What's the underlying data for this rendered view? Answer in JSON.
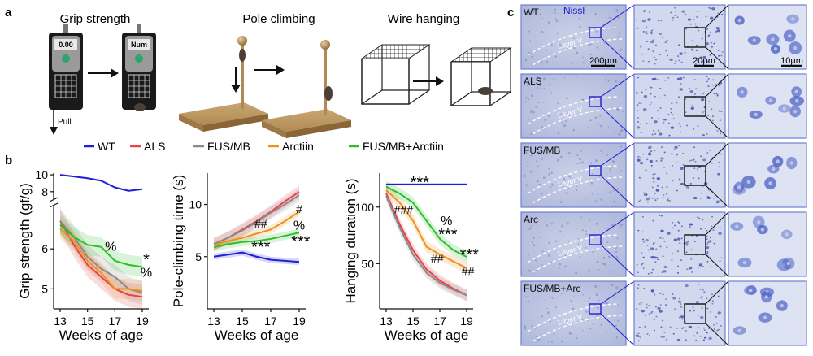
{
  "panel_labels": {
    "a": "a",
    "b": "b",
    "c": "c"
  },
  "tests": {
    "grip": {
      "title": "Grip strength",
      "display_before": "0.00",
      "display_after": "Num",
      "pull_label": "Pull"
    },
    "pole": {
      "title": "Pole climbing"
    },
    "wire": {
      "title": "Wire hanging"
    }
  },
  "legend": [
    {
      "name": "WT",
      "color": "#1f1fd6"
    },
    {
      "name": "ALS",
      "color": "#e8434b"
    },
    {
      "name": "FUS/MB",
      "color": "#8a8a8a"
    },
    {
      "name": "Arctiin",
      "color": "#f0901e"
    },
    {
      "name": "FUS/MB+Arctiin",
      "color": "#2bbf2b"
    }
  ],
  "chart_data": [
    {
      "id": "grip",
      "type": "line",
      "xlabel": "Weeks of age",
      "ylabel": "Grip strength (gf/g)",
      "x": [
        13,
        14,
        15,
        16,
        17,
        18,
        19
      ],
      "xticks": [
        13,
        15,
        17,
        19
      ],
      "ylim_lower": [
        4.5,
        7.0
      ],
      "ylim_upper": [
        7.5,
        10.2
      ],
      "yticks_lower": [
        5,
        6
      ],
      "yticks_upper": [
        8,
        10
      ],
      "axis_break": true,
      "series": [
        {
          "name": "WT",
          "values": [
            10.0,
            9.8,
            9.6,
            9.3,
            8.5,
            8.1,
            8.3
          ],
          "band": 0.1
        },
        {
          "name": "ALS",
          "values": [
            6.7,
            6.1,
            5.6,
            5.3,
            5.0,
            4.85,
            4.8
          ],
          "band": 0.3
        },
        {
          "name": "FUS/MB",
          "values": [
            6.7,
            6.3,
            5.8,
            5.5,
            5.3,
            5.0,
            4.9
          ],
          "band": 0.3
        },
        {
          "name": "Arctiin",
          "values": [
            6.5,
            6.2,
            5.7,
            5.4,
            5.0,
            5.0,
            4.95
          ],
          "band": 0.25
        },
        {
          "name": "FUS/MB+Arctiin",
          "values": [
            6.6,
            6.3,
            6.1,
            6.05,
            5.7,
            5.6,
            5.55
          ],
          "band": 0.25
        }
      ],
      "annotations": [
        {
          "text": "%",
          "x": 16.7,
          "y": 5.95,
          "size": 16
        },
        {
          "text": "*",
          "x": 19.3,
          "y": 5.6,
          "size": 20
        },
        {
          "text": "%",
          "x": 19.3,
          "y": 5.3,
          "size": 16
        }
      ]
    },
    {
      "id": "pole",
      "type": "line",
      "xlabel": "Weeks of age",
      "ylabel": "Pole-climbing time (s)",
      "x": [
        13,
        14,
        15,
        16,
        17,
        18,
        19
      ],
      "xticks": [
        13,
        15,
        17,
        19
      ],
      "ylim": [
        0,
        13
      ],
      "yticks": [
        5,
        10
      ],
      "series": [
        {
          "name": "WT",
          "values": [
            5.0,
            5.2,
            5.4,
            5.0,
            4.7,
            4.6,
            4.5
          ],
          "band": 0.3
        },
        {
          "name": "ALS",
          "values": [
            6.2,
            6.8,
            7.6,
            8.4,
            9.3,
            10.3,
            11.2
          ],
          "band": 0.6
        },
        {
          "name": "FUS/MB",
          "values": [
            6.2,
            6.8,
            7.5,
            8.3,
            9.2,
            10.0,
            10.9
          ],
          "band": 0.6
        },
        {
          "name": "Arctiin",
          "values": [
            6.1,
            6.5,
            6.8,
            7.2,
            7.6,
            8.4,
            9.3
          ],
          "band": 0.4
        },
        {
          "name": "FUS/MB+Arctiin",
          "values": [
            5.9,
            6.2,
            6.4,
            6.5,
            6.7,
            7.0,
            7.3
          ],
          "band": 0.4
        }
      ],
      "annotations": [
        {
          "text": "##",
          "x": 16.3,
          "y": 7.8,
          "size": 14
        },
        {
          "text": "***",
          "x": 16.3,
          "y": 5.4,
          "size": 20
        },
        {
          "text": "#",
          "x": 19.0,
          "y": 9.2,
          "size": 14
        },
        {
          "text": "%",
          "x": 19.0,
          "y": 7.6,
          "size": 16
        },
        {
          "text": "***",
          "x": 19.1,
          "y": 5.9,
          "size": 20
        }
      ]
    },
    {
      "id": "hang",
      "type": "line",
      "xlabel": "Weeks of age",
      "ylabel": "Hanging duration (s)",
      "x": [
        13,
        14,
        15,
        16,
        17,
        18,
        19
      ],
      "xticks": [
        13,
        15,
        17,
        19
      ],
      "ylim": [
        10,
        130
      ],
      "yticks": [
        50,
        100
      ],
      "series": [
        {
          "name": "WT",
          "values": [
            120,
            120,
            120,
            120,
            120,
            120,
            120
          ],
          "band": 1
        },
        {
          "name": "ALS",
          "values": [
            112,
            85,
            62,
            45,
            35,
            28,
            22
          ],
          "band": 5
        },
        {
          "name": "FUS/MB",
          "values": [
            110,
            82,
            58,
            42,
            33,
            27,
            22
          ],
          "band": 5
        },
        {
          "name": "Arctiin",
          "values": [
            115,
            104,
            88,
            65,
            58,
            52,
            46
          ],
          "band": 5
        },
        {
          "name": "FUS/MB+Arctiin",
          "values": [
            118,
            112,
            104,
            88,
            72,
            62,
            56
          ],
          "band": 5
        }
      ],
      "annotations": [
        {
          "text": "***",
          "x": 15.5,
          "y": 117,
          "size": 20
        },
        {
          "text": "###",
          "x": 14.3,
          "y": 94,
          "size": 14
        },
        {
          "text": "%",
          "x": 17.5,
          "y": 84,
          "size": 16
        },
        {
          "text": "***",
          "x": 17.6,
          "y": 71,
          "size": 20
        },
        {
          "text": "##",
          "x": 16.8,
          "y": 51,
          "size": 14
        },
        {
          "text": "***",
          "x": 19.2,
          "y": 53,
          "size": 20
        },
        {
          "text": "##",
          "x": 19.1,
          "y": 40,
          "size": 14
        }
      ]
    }
  ],
  "histology": {
    "stain_label": "Nissl",
    "layer_label": "Layer V",
    "scale_bars": [
      "200μm",
      "20μm",
      "10μm"
    ],
    "rows": [
      {
        "label": "WT"
      },
      {
        "label": "ALS"
      },
      {
        "label": "FUS/MB"
      },
      {
        "label": "Arc"
      },
      {
        "label": "FUS/MB+Arc"
      }
    ]
  }
}
